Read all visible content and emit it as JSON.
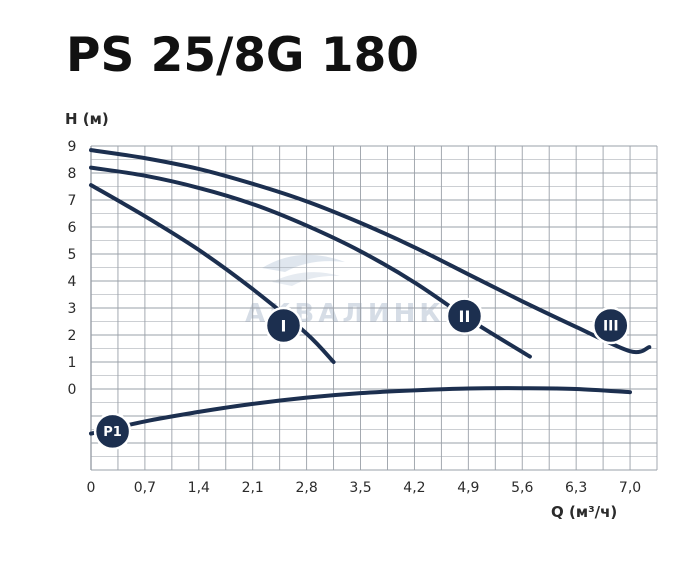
{
  "chart_data": {
    "type": "line",
    "title": "PS 25/8G 180",
    "ylabel": "H (м)",
    "xlabel": "Q (м³/ч)",
    "x_ticks": [
      "0",
      "0,7",
      "1,4",
      "2,1",
      "2,8",
      "3,5",
      "4,2",
      "4,9",
      "5,6",
      "6,3",
      "7,0"
    ],
    "y_ticks": [
      "9",
      "8",
      "7",
      "6",
      "5",
      "4",
      "3",
      "2",
      "1",
      "0"
    ],
    "xlim": [
      0,
      7.35
    ],
    "ylim": [
      -3,
      9
    ],
    "grid": true,
    "line_color": "#1c2f4f",
    "series": [
      {
        "name": "I",
        "points": [
          [
            0,
            7.55
          ],
          [
            0.7,
            6.4
          ],
          [
            1.4,
            5.15
          ],
          [
            2.1,
            3.7
          ],
          [
            2.8,
            2.05
          ],
          [
            3.15,
            1.0
          ]
        ]
      },
      {
        "name": "II",
        "points": [
          [
            0,
            8.2
          ],
          [
            0.7,
            7.9
          ],
          [
            1.4,
            7.45
          ],
          [
            2.1,
            6.85
          ],
          [
            2.8,
            6.05
          ],
          [
            3.5,
            5.1
          ],
          [
            4.2,
            3.95
          ],
          [
            4.9,
            2.6
          ],
          [
            5.7,
            1.2
          ]
        ]
      },
      {
        "name": "III",
        "points": [
          [
            0,
            8.85
          ],
          [
            0.7,
            8.55
          ],
          [
            1.4,
            8.15
          ],
          [
            2.1,
            7.6
          ],
          [
            2.8,
            6.95
          ],
          [
            3.5,
            6.15
          ],
          [
            4.2,
            5.25
          ],
          [
            4.9,
            4.25
          ],
          [
            5.6,
            3.25
          ],
          [
            6.3,
            2.3
          ],
          [
            7.0,
            1.4
          ],
          [
            7.25,
            1.55
          ]
        ]
      },
      {
        "name": "P1",
        "points": [
          [
            0,
            -1.65
          ],
          [
            0.7,
            -1.2
          ],
          [
            1.4,
            -0.85
          ],
          [
            2.1,
            -0.55
          ],
          [
            2.8,
            -0.32
          ],
          [
            3.5,
            -0.15
          ],
          [
            4.2,
            -0.05
          ],
          [
            4.9,
            0.02
          ],
          [
            5.6,
            0.03
          ],
          [
            6.3,
            0.0
          ],
          [
            7.0,
            -0.12
          ]
        ]
      }
    ],
    "badges": [
      {
        "label": "I",
        "x": 2.5,
        "y": 2.35
      },
      {
        "label": "II",
        "x": 4.85,
        "y": 2.7
      },
      {
        "label": "III",
        "x": 6.75,
        "y": 2.35
      },
      {
        "label": "P1",
        "x": 0.28,
        "y": -1.57
      }
    ]
  },
  "watermark": "АКВАЛИНК"
}
